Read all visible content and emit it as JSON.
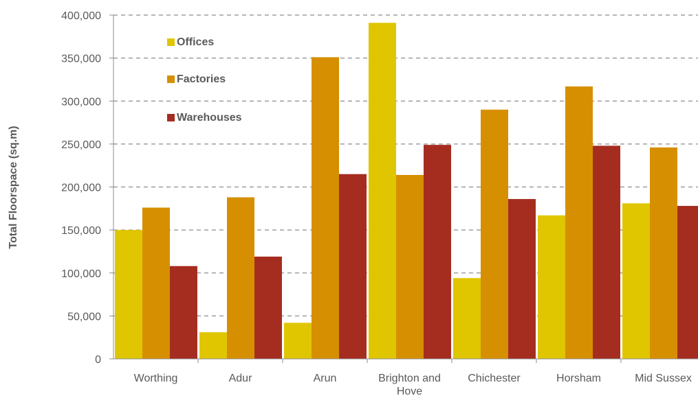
{
  "chart_data": {
    "type": "bar",
    "ylabel": "Total Floorspace (sq.m)",
    "xlabel": "",
    "ylim": [
      0,
      400000
    ],
    "yticks": [
      0,
      50000,
      100000,
      150000,
      200000,
      250000,
      300000,
      350000,
      400000
    ],
    "ytick_labels": [
      "0",
      "50,000",
      "100,000",
      "150,000",
      "200,000",
      "250,000",
      "300,000",
      "350,000",
      "400,000"
    ],
    "grid": true,
    "legend_position": "top-left",
    "categories": [
      "Worthing",
      "Adur",
      "Arun",
      "Brighton and Hove",
      "Chichester",
      "Horsham",
      "Mid Sussex"
    ],
    "series": [
      {
        "name": "Offices",
        "color": "#dfc600",
        "values": [
          150000,
          31000,
          42000,
          391000,
          94000,
          167000,
          181000
        ]
      },
      {
        "name": "Factories",
        "color": "#d68f00",
        "values": [
          176000,
          188000,
          351000,
          214000,
          290000,
          317000,
          246000
        ]
      },
      {
        "name": "Warehouses",
        "color": "#a52d20",
        "values": [
          108000,
          119000,
          215000,
          249000,
          186000,
          248000,
          178000
        ]
      }
    ]
  }
}
